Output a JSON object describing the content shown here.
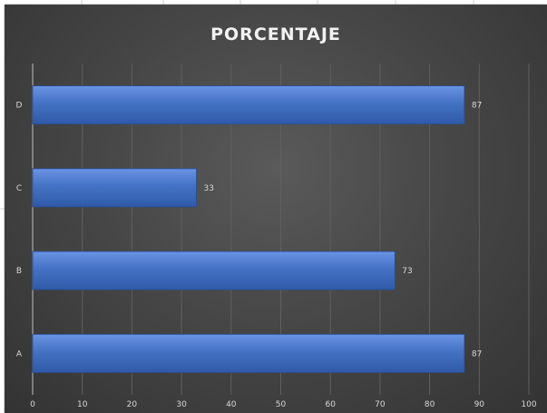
{
  "chart_data": {
    "type": "bar",
    "orientation": "horizontal",
    "title": "PORCENTAJE",
    "categories": [
      "A",
      "B",
      "C",
      "D"
    ],
    "values": [
      87,
      73,
      33,
      87
    ],
    "xlim": [
      0,
      100
    ],
    "xticks": [
      0,
      10,
      20,
      30,
      40,
      50,
      60,
      70,
      80,
      90,
      100
    ],
    "xlabel": "",
    "ylabel": "",
    "grid": true,
    "legend": "none",
    "data_labels": true,
    "colors": {
      "bar": "#4472c4",
      "bar_light": "#5a8ae0",
      "background": "#404040",
      "grid": "#5f5f5f",
      "text": "#d9d9d9"
    }
  }
}
